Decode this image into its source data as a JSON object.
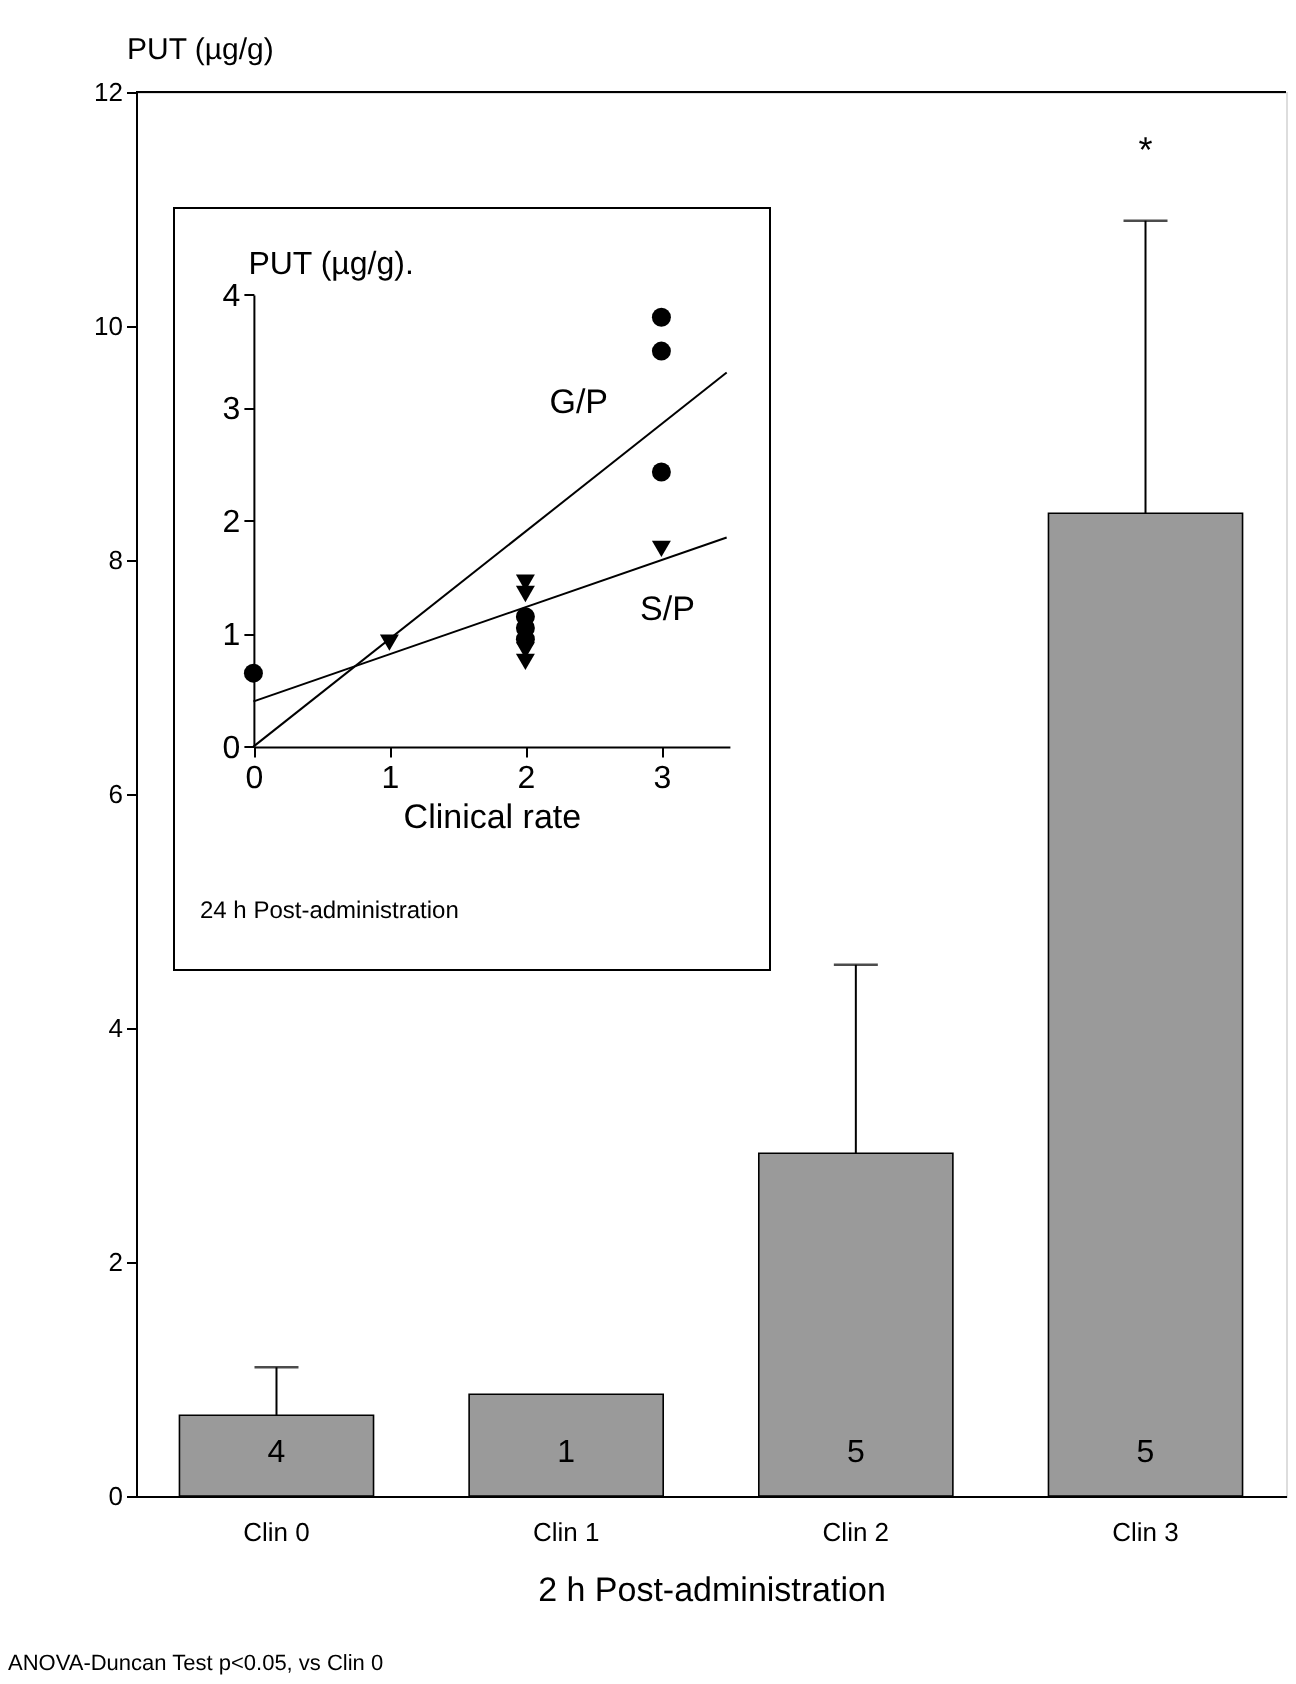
{
  "chart_data": [
    {
      "type": "bar",
      "ylabel": "PUT (µg/g)",
      "xlabel": "2 h Post-administration",
      "categories": [
        "Clin 0",
        "Clin 1",
        "Clin 2",
        "Clin 3"
      ],
      "values": [
        0.69,
        0.87,
        2.93,
        8.4
      ],
      "errors": [
        [
          0.69,
          1.1
        ],
        null,
        [
          2.93,
          4.54
        ],
        [
          8.4,
          10.9
        ]
      ],
      "color": "#9a9a9a",
      "ylim": [
        0,
        12
      ],
      "yticks": [
        0,
        2,
        4,
        6,
        8,
        10,
        12
      ],
      "annotations": [
        "*",
        "4",
        "1",
        "5",
        "5",
        "ANOVA-Duncan Test p<0.05, vs Clin 0"
      ]
    },
    {
      "type": "scatter",
      "ylabel": "PUT (µg/g).",
      "xlabel": "Clinical rate",
      "xlim": [
        0,
        3.5
      ],
      "xticks": [
        0,
        1,
        2,
        3
      ],
      "ylim": [
        0,
        4
      ],
      "yticks": [
        0,
        1,
        2,
        3,
        4
      ],
      "series": [
        {
          "type": "scatter",
          "marker": "circle",
          "color": "#000000",
          "x": [
            0,
            2,
            2,
            2,
            3,
            3,
            3
          ],
          "values": [
            0.65,
            1.15,
            1.05,
            0.95,
            3.8,
            3.5,
            2.43
          ]
        },
        {
          "type": "scatter",
          "marker": "triangle",
          "color": "#000000",
          "x": [
            1,
            2,
            2,
            2,
            2,
            3
          ],
          "values": [
            0.92,
            1.45,
            1.35,
            0.85,
            0.75,
            1.75
          ]
        },
        {
          "type": "line",
          "name": "G/P",
          "color": "#000000",
          "x": [
            0,
            3.48
          ],
          "values": [
            0,
            3.31
          ]
        },
        {
          "type": "line",
          "name": "S/P",
          "color": "#000000",
          "x": [
            0,
            3.48
          ],
          "values": [
            0.4,
            1.85
          ]
        }
      ],
      "annotations": [
        "24 h Post-administration"
      ]
    }
  ]
}
